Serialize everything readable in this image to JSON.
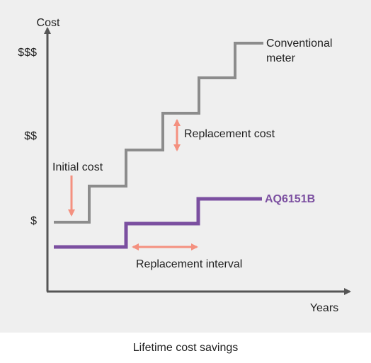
{
  "diagram": {
    "y_axis_label": "Cost",
    "y_levels": [
      "$$$",
      "$$",
      "$"
    ],
    "x_axis_label": "Years",
    "series": [
      {
        "name": "Conventional meter",
        "label_lines": [
          "Conventional",
          "meter"
        ]
      },
      {
        "name": "AQ6151B"
      }
    ],
    "annotations": {
      "replacement_cost": "Replacement cost",
      "initial_cost": "Initial cost",
      "replacement_interval": "Replacement interval"
    },
    "caption": "Lifetime cost savings"
  }
}
